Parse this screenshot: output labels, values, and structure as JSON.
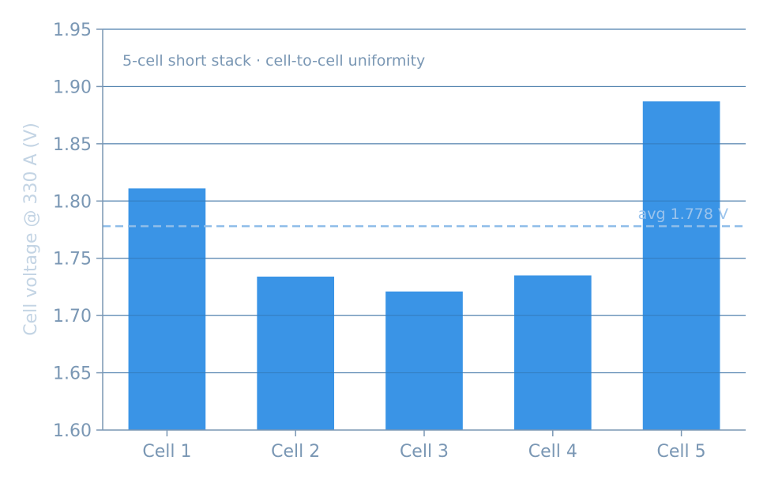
{
  "chart_data": {
    "type": "bar",
    "title": "",
    "annotation": "5-cell short stack · cell-to-cell uniformity",
    "xlabel": "",
    "ylabel": "Cell voltage @ 330 A (V)",
    "categories": [
      "Cell 1",
      "Cell 2",
      "Cell 3",
      "Cell 4",
      "Cell 5"
    ],
    "values": [
      1.811,
      1.734,
      1.721,
      1.735,
      1.887
    ],
    "ylim": [
      1.6,
      1.95
    ],
    "yticks": [
      "1.60",
      "1.65",
      "1.70",
      "1.75",
      "1.80",
      "1.85",
      "1.90",
      "1.95"
    ],
    "reference_line": {
      "value": 1.778,
      "label": "avg 1.778 V",
      "style": "dashed"
    },
    "grid": true,
    "colors": {
      "bar": "#3a94e6",
      "grid": "#8aa5bf",
      "axis": "#7a97b4",
      "reference": "#8fbde9"
    }
  }
}
